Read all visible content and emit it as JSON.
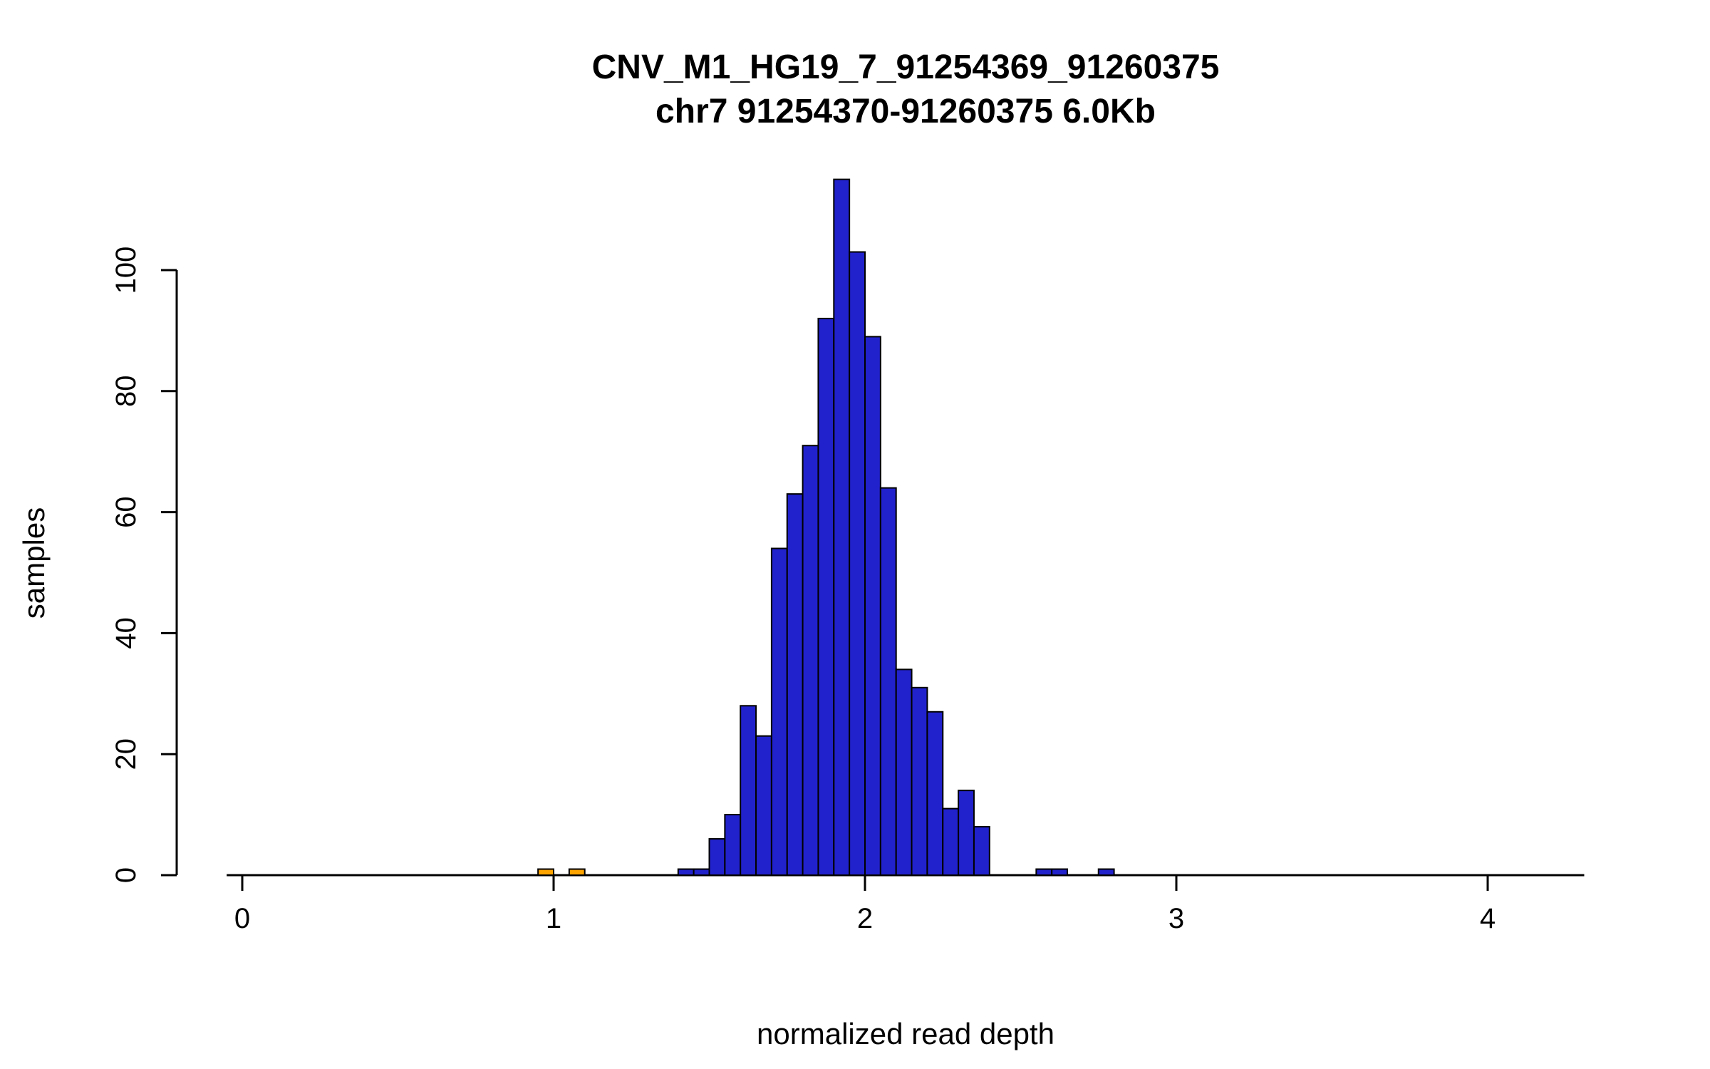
{
  "chart_data": {
    "type": "bar",
    "subtype": "histogram",
    "title_line1": "CNV_M1_HG19_7_91254369_91260375",
    "title_line2": "chr7 91254370-91260375 6.0Kb",
    "xlabel": "normalized read depth",
    "ylabel": "samples",
    "bin_width": 0.05,
    "xlim": [
      -0.05,
      4.31
    ],
    "ylim": [
      0,
      115
    ],
    "xticks": [
      0,
      1,
      2,
      3,
      4
    ],
    "yticks": [
      0,
      20,
      40,
      60,
      80,
      100
    ],
    "grid": false,
    "legend": "none",
    "colors": {
      "blue": "#2222cc",
      "orange": "#ffa500",
      "stroke": "#000000",
      "axis": "#000000"
    },
    "bars": [
      {
        "x0": 0.95,
        "count": 1,
        "color": "orange"
      },
      {
        "x0": 1.05,
        "count": 1,
        "color": "orange"
      },
      {
        "x0": 1.4,
        "count": 1,
        "color": "blue"
      },
      {
        "x0": 1.45,
        "count": 1,
        "color": "blue"
      },
      {
        "x0": 1.5,
        "count": 6,
        "color": "blue"
      },
      {
        "x0": 1.55,
        "count": 10,
        "color": "blue"
      },
      {
        "x0": 1.6,
        "count": 28,
        "color": "blue"
      },
      {
        "x0": 1.65,
        "count": 23,
        "color": "blue"
      },
      {
        "x0": 1.7,
        "count": 54,
        "color": "blue"
      },
      {
        "x0": 1.75,
        "count": 63,
        "color": "blue"
      },
      {
        "x0": 1.8,
        "count": 71,
        "color": "blue"
      },
      {
        "x0": 1.85,
        "count": 92,
        "color": "blue"
      },
      {
        "x0": 1.9,
        "count": 115,
        "color": "blue"
      },
      {
        "x0": 1.95,
        "count": 103,
        "color": "blue"
      },
      {
        "x0": 2.0,
        "count": 89,
        "color": "blue"
      },
      {
        "x0": 2.05,
        "count": 64,
        "color": "blue"
      },
      {
        "x0": 2.1,
        "count": 34,
        "color": "blue"
      },
      {
        "x0": 2.15,
        "count": 31,
        "color": "blue"
      },
      {
        "x0": 2.2,
        "count": 27,
        "color": "blue"
      },
      {
        "x0": 2.25,
        "count": 11,
        "color": "blue"
      },
      {
        "x0": 2.3,
        "count": 14,
        "color": "blue"
      },
      {
        "x0": 2.35,
        "count": 8,
        "color": "blue"
      },
      {
        "x0": 2.55,
        "count": 1,
        "color": "blue"
      },
      {
        "x0": 2.6,
        "count": 1,
        "color": "blue"
      },
      {
        "x0": 2.75,
        "count": 1,
        "color": "blue"
      }
    ]
  }
}
